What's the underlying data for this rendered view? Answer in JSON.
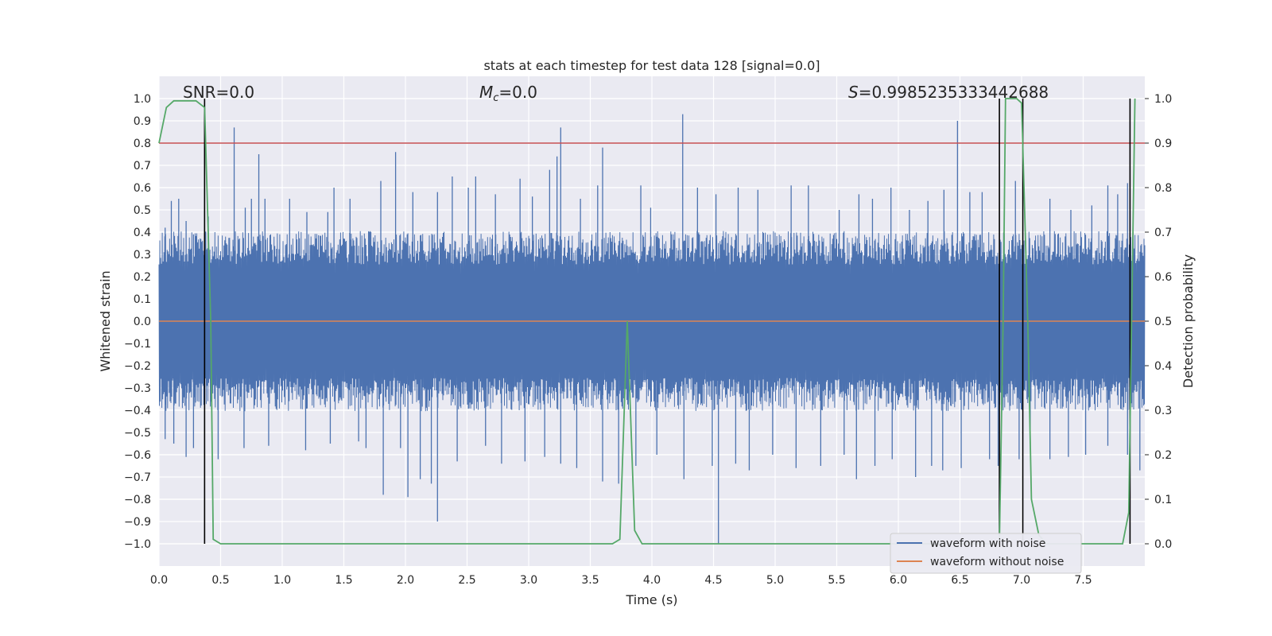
{
  "chart_data": {
    "type": "line",
    "title": "stats at each timestep for test data 128 [signal=0.0]",
    "xlabel": "Time (s)",
    "ylabel": "Whitened strain",
    "ylabel_right": "Detection probability",
    "xlim": [
      0.0,
      8.0
    ],
    "ylim": [
      -1.1,
      1.1
    ],
    "ylim_right": [
      -0.05,
      1.05
    ],
    "x_ticks": [
      0.0,
      0.5,
      1.0,
      1.5,
      2.0,
      2.5,
      3.0,
      3.5,
      4.0,
      4.5,
      5.0,
      5.5,
      6.0,
      6.5,
      7.0,
      7.5
    ],
    "x_tick_labels": [
      "0.0",
      "0.5",
      "1.0",
      "1.5",
      "2.0",
      "2.5",
      "3.0",
      "3.5",
      "4.0",
      "4.5",
      "5.0",
      "5.5",
      "6.0",
      "6.5",
      "7.0",
      "7.5"
    ],
    "y_ticks": [
      1.0,
      0.9,
      0.8,
      0.7,
      0.6,
      0.5,
      0.4,
      0.3,
      0.2,
      0.1,
      0.0,
      -0.1,
      -0.2,
      -0.3,
      -0.4,
      -0.5,
      -0.6,
      -0.7,
      -0.8,
      -0.9,
      -1.0
    ],
    "y_tick_labels": [
      "1.0",
      "0.9",
      "0.8",
      "0.7",
      "0.6",
      "0.5",
      "0.4",
      "0.3",
      "0.2",
      "0.1",
      "0.0",
      "−0.1",
      "−0.2",
      "−0.3",
      "−0.4",
      "−0.5",
      "−0.6",
      "−0.7",
      "−0.8",
      "−0.9",
      "−1.0"
    ],
    "y_right_ticks": [
      1.0,
      0.9,
      0.8,
      0.7,
      0.6,
      0.5,
      0.4,
      0.3,
      0.2,
      0.1,
      0.0
    ],
    "y_right_tick_labels": [
      "1.0",
      "0.9",
      "0.8",
      "0.7",
      "0.6",
      "0.5",
      "0.4",
      "0.3",
      "0.2",
      "0.1",
      "0.0"
    ],
    "annotations": {
      "snr": "SNR=0.0",
      "mc_symbol": "M",
      "mc_subscript": "c",
      "mc_value": "=0.0",
      "s_symbol": "S",
      "s_value": "=0.9985235333442688"
    },
    "threshold_right": 0.9,
    "vertical_lines_x": [
      0.37,
      6.82,
      7.01,
      7.88
    ],
    "noise_series": {
      "name": "waveform with noise",
      "color": "#4c72b0",
      "core_amplitude": 0.3,
      "spikes_pos": [
        [
          0.05,
          0.42
        ],
        [
          0.1,
          0.54
        ],
        [
          0.16,
          0.55
        ],
        [
          0.22,
          0.45
        ],
        [
          0.28,
          0.39
        ],
        [
          0.4,
          0.47
        ],
        [
          0.61,
          0.87
        ],
        [
          0.7,
          0.51
        ],
        [
          0.75,
          0.55
        ],
        [
          0.81,
          0.75
        ],
        [
          0.86,
          0.55
        ],
        [
          1.06,
          0.55
        ],
        [
          1.2,
          0.49
        ],
        [
          1.37,
          0.49
        ],
        [
          1.42,
          0.6
        ],
        [
          1.55,
          0.55
        ],
        [
          1.8,
          0.63
        ],
        [
          1.92,
          0.76
        ],
        [
          2.06,
          0.58
        ],
        [
          2.26,
          0.58
        ],
        [
          2.38,
          0.65
        ],
        [
          2.51,
          0.6
        ],
        [
          2.57,
          0.65
        ],
        [
          2.73,
          0.57
        ],
        [
          2.93,
          0.64
        ],
        [
          3.03,
          0.56
        ],
        [
          3.17,
          0.68
        ],
        [
          3.23,
          0.74
        ],
        [
          3.26,
          0.87
        ],
        [
          3.42,
          0.55
        ],
        [
          3.56,
          0.61
        ],
        [
          3.6,
          0.78
        ],
        [
          3.91,
          0.61
        ],
        [
          3.99,
          0.51
        ],
        [
          4.25,
          0.93
        ],
        [
          4.37,
          0.6
        ],
        [
          4.52,
          0.57
        ],
        [
          4.7,
          0.6
        ],
        [
          4.86,
          0.59
        ],
        [
          5.13,
          0.61
        ],
        [
          5.27,
          0.61
        ],
        [
          5.52,
          0.5
        ],
        [
          5.68,
          0.57
        ],
        [
          5.79,
          0.55
        ],
        [
          5.94,
          0.6
        ],
        [
          6.09,
          0.5
        ],
        [
          6.24,
          0.54
        ],
        [
          6.37,
          0.59
        ],
        [
          6.48,
          0.9
        ],
        [
          6.58,
          0.58
        ],
        [
          6.68,
          0.58
        ],
        [
          6.95,
          0.63
        ],
        [
          7.23,
          0.55
        ],
        [
          7.4,
          0.5
        ],
        [
          7.57,
          0.52
        ],
        [
          7.7,
          0.61
        ],
        [
          7.78,
          0.57
        ],
        [
          7.86,
          0.62
        ]
      ],
      "spikes_neg": [
        [
          0.05,
          -0.53
        ],
        [
          0.12,
          -0.55
        ],
        [
          0.22,
          -0.61
        ],
        [
          0.28,
          -0.57
        ],
        [
          0.48,
          -0.62
        ],
        [
          0.69,
          -0.57
        ],
        [
          0.89,
          -0.56
        ],
        [
          1.19,
          -0.58
        ],
        [
          1.39,
          -0.55
        ],
        [
          1.62,
          -0.54
        ],
        [
          1.68,
          -0.57
        ],
        [
          1.82,
          -0.78
        ],
        [
          1.96,
          -0.57
        ],
        [
          2.02,
          -0.79
        ],
        [
          2.12,
          -0.71
        ],
        [
          2.21,
          -0.73
        ],
        [
          2.26,
          -0.9
        ],
        [
          2.42,
          -0.63
        ],
        [
          2.65,
          -0.56
        ],
        [
          2.78,
          -0.64
        ],
        [
          2.97,
          -0.63
        ],
        [
          3.13,
          -0.61
        ],
        [
          3.26,
          -0.64
        ],
        [
          3.39,
          -0.66
        ],
        [
          3.6,
          -0.72
        ],
        [
          3.73,
          -0.73
        ],
        [
          3.87,
          -0.65
        ],
        [
          4.04,
          -0.6
        ],
        [
          4.26,
          -0.71
        ],
        [
          4.49,
          -0.65
        ],
        [
          4.54,
          -1.0
        ],
        [
          4.68,
          -0.64
        ],
        [
          4.79,
          -0.67
        ],
        [
          4.98,
          -0.6
        ],
        [
          5.17,
          -0.66
        ],
        [
          5.37,
          -0.65
        ],
        [
          5.56,
          -0.6
        ],
        [
          5.66,
          -0.71
        ],
        [
          5.81,
          -0.65
        ],
        [
          5.95,
          -0.62
        ],
        [
          6.14,
          -0.7
        ],
        [
          6.27,
          -0.65
        ],
        [
          6.36,
          -0.67
        ],
        [
          6.51,
          -0.66
        ],
        [
          6.74,
          -0.62
        ],
        [
          6.81,
          -0.65
        ],
        [
          6.98,
          -0.62
        ],
        [
          7.07,
          -0.55
        ],
        [
          7.23,
          -0.62
        ],
        [
          7.38,
          -0.61
        ],
        [
          7.52,
          -0.6
        ],
        [
          7.7,
          -0.56
        ],
        [
          7.86,
          -0.6
        ],
        [
          7.96,
          -0.67
        ]
      ]
    },
    "clean_series": {
      "name": "waveform without noise",
      "color": "#dd8452",
      "value": 0.0
    },
    "probability_series": {
      "name": "Detection probability",
      "color": "#55a868",
      "x": [
        0.0,
        0.06,
        0.12,
        0.3,
        0.37,
        0.42,
        0.44,
        0.5,
        3.68,
        3.74,
        3.8,
        3.86,
        3.92,
        6.78,
        6.82,
        6.85,
        6.87,
        6.96,
        7.0,
        7.05,
        7.08,
        7.14,
        7.2,
        7.82,
        7.87,
        7.92
      ],
      "y": [
        0.9,
        0.98,
        0.995,
        0.995,
        0.98,
        0.5,
        0.01,
        0.0,
        0.0,
        0.01,
        0.5,
        0.03,
        0.0,
        0.0,
        0.0,
        0.5,
        1.0,
        1.0,
        0.99,
        0.5,
        0.1,
        0.02,
        0.0,
        0.0,
        0.07,
        1.0
      ]
    },
    "threshold_color": "#c44e52",
    "legend": {
      "placement": "lower-right",
      "entries": [
        {
          "label": "waveform with noise",
          "color": "#4c72b0"
        },
        {
          "label": "waveform without noise",
          "color": "#dd8452"
        }
      ]
    },
    "grid": true,
    "plot_background": "#eaeaf2",
    "grid_color": "#ffffff"
  }
}
